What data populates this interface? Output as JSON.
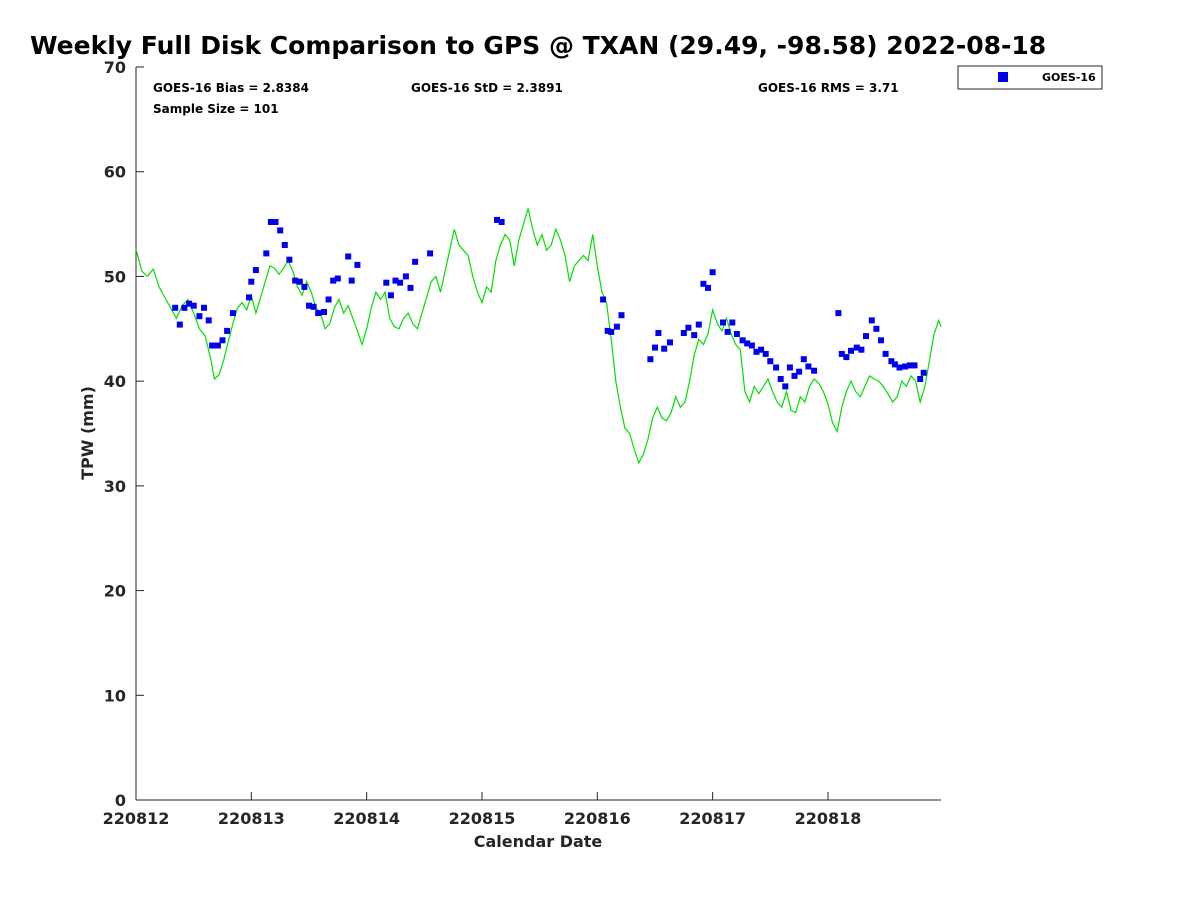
{
  "chart_data": {
    "type": "line+scatter",
    "title": "Weekly Full Disk Comparison to GPS @ TXAN (29.49, -98.58) 2022-08-18",
    "xlabel": "Calendar Date",
    "ylabel": "TPW (mm)",
    "xlim": [
      12.0,
      18.98
    ],
    "ylim": [
      0,
      70
    ],
    "grid": false,
    "x_ticks": [
      {
        "value": 12,
        "label": "220812"
      },
      {
        "value": 13,
        "label": "220813"
      },
      {
        "value": 14,
        "label": "220814"
      },
      {
        "value": 15,
        "label": "220815"
      },
      {
        "value": 16,
        "label": "220816"
      },
      {
        "value": 17,
        "label": "220817"
      },
      {
        "value": 18,
        "label": "220818"
      }
    ],
    "y_ticks": [
      {
        "value": 0,
        "label": "0"
      },
      {
        "value": 10,
        "label": "10"
      },
      {
        "value": 20,
        "label": "20"
      },
      {
        "value": 30,
        "label": "30"
      },
      {
        "value": 40,
        "label": "40"
      },
      {
        "value": 50,
        "label": "50"
      },
      {
        "value": 60,
        "label": "60"
      },
      {
        "value": 70,
        "label": "70"
      }
    ],
    "stats": {
      "bias": "GOES-16 Bias = 2.8384",
      "std": "GOES-16 StD = 2.3891",
      "rms": "GOES-16 RMS = 3.71",
      "sample": "Sample Size = 101"
    },
    "legend": {
      "position": "top-right",
      "entries": [
        "GOES-16"
      ]
    },
    "series": [
      {
        "name": "GPS",
        "kind": "line",
        "color": "#00e000",
        "points": [
          [
            12.0,
            52.6
          ],
          [
            12.05,
            50.5
          ],
          [
            12.1,
            50.0
          ],
          [
            12.15,
            50.7
          ],
          [
            12.2,
            49.0
          ],
          [
            12.25,
            48.0
          ],
          [
            12.3,
            47.0
          ],
          [
            12.35,
            46.0
          ],
          [
            12.4,
            47.2
          ],
          [
            12.45,
            47.8
          ],
          [
            12.5,
            46.5
          ],
          [
            12.55,
            45.0
          ],
          [
            12.6,
            44.3
          ],
          [
            12.65,
            42.0
          ],
          [
            12.68,
            40.2
          ],
          [
            12.72,
            40.6
          ],
          [
            12.76,
            42.0
          ],
          [
            12.8,
            43.8
          ],
          [
            12.84,
            45.5
          ],
          [
            12.88,
            47.0
          ],
          [
            12.92,
            47.5
          ],
          [
            12.96,
            46.8
          ],
          [
            13.0,
            48.2
          ],
          [
            13.04,
            46.5
          ],
          [
            13.08,
            48.0
          ],
          [
            13.12,
            49.5
          ],
          [
            13.16,
            51.0
          ],
          [
            13.2,
            50.8
          ],
          [
            13.24,
            50.2
          ],
          [
            13.28,
            50.8
          ],
          [
            13.32,
            51.5
          ],
          [
            13.36,
            50.5
          ],
          [
            13.4,
            49.0
          ],
          [
            13.44,
            48.2
          ],
          [
            13.48,
            49.5
          ],
          [
            13.52,
            48.5
          ],
          [
            13.56,
            47.0
          ],
          [
            13.6,
            46.5
          ],
          [
            13.64,
            45.0
          ],
          [
            13.68,
            45.5
          ],
          [
            13.72,
            47.0
          ],
          [
            13.76,
            47.8
          ],
          [
            13.8,
            46.5
          ],
          [
            13.84,
            47.2
          ],
          [
            13.88,
            46.0
          ],
          [
            13.92,
            44.8
          ],
          [
            13.96,
            43.5
          ],
          [
            14.0,
            45.0
          ],
          [
            14.04,
            47.0
          ],
          [
            14.08,
            48.5
          ],
          [
            14.12,
            47.8
          ],
          [
            14.16,
            48.5
          ],
          [
            14.2,
            46.0
          ],
          [
            14.24,
            45.2
          ],
          [
            14.28,
            45.0
          ],
          [
            14.32,
            46.0
          ],
          [
            14.36,
            46.5
          ],
          [
            14.4,
            45.5
          ],
          [
            14.44,
            45.0
          ],
          [
            14.48,
            46.5
          ],
          [
            14.52,
            48.0
          ],
          [
            14.56,
            49.5
          ],
          [
            14.6,
            50.0
          ],
          [
            14.64,
            48.5
          ],
          [
            14.68,
            50.5
          ],
          [
            14.72,
            52.5
          ],
          [
            14.76,
            54.5
          ],
          [
            14.8,
            53.0
          ],
          [
            14.84,
            52.5
          ],
          [
            14.88,
            52.0
          ],
          [
            14.92,
            50.0
          ],
          [
            14.96,
            48.5
          ],
          [
            15.0,
            47.5
          ],
          [
            15.04,
            49.0
          ],
          [
            15.08,
            48.5
          ],
          [
            15.12,
            51.5
          ],
          [
            15.16,
            53.0
          ],
          [
            15.2,
            54.0
          ],
          [
            15.24,
            53.5
          ],
          [
            15.28,
            51.0
          ],
          [
            15.32,
            53.5
          ],
          [
            15.36,
            55.0
          ],
          [
            15.4,
            56.5
          ],
          [
            15.44,
            54.5
          ],
          [
            15.48,
            53.0
          ],
          [
            15.52,
            54.0
          ],
          [
            15.56,
            52.5
          ],
          [
            15.6,
            53.0
          ],
          [
            15.64,
            54.5
          ],
          [
            15.68,
            53.5
          ],
          [
            15.72,
            52.0
          ],
          [
            15.76,
            49.5
          ],
          [
            15.8,
            51.0
          ],
          [
            15.84,
            51.5
          ],
          [
            15.88,
            52.0
          ],
          [
            15.92,
            51.5
          ],
          [
            15.96,
            54.0
          ],
          [
            16.0,
            51.0
          ],
          [
            16.04,
            48.5
          ],
          [
            16.08,
            47.5
          ],
          [
            16.12,
            44.0
          ],
          [
            16.16,
            40.0
          ],
          [
            16.2,
            37.5
          ],
          [
            16.24,
            35.5
          ],
          [
            16.28,
            35.0
          ],
          [
            16.32,
            33.5
          ],
          [
            16.36,
            32.2
          ],
          [
            16.4,
            33.0
          ],
          [
            16.44,
            34.5
          ],
          [
            16.48,
            36.5
          ],
          [
            16.52,
            37.5
          ],
          [
            16.56,
            36.5
          ],
          [
            16.6,
            36.2
          ],
          [
            16.64,
            37.0
          ],
          [
            16.68,
            38.5
          ],
          [
            16.72,
            37.5
          ],
          [
            16.76,
            38.0
          ],
          [
            16.8,
            40.0
          ],
          [
            16.84,
            42.5
          ],
          [
            16.88,
            44.0
          ],
          [
            16.92,
            43.5
          ],
          [
            16.96,
            44.5
          ],
          [
            17.0,
            46.8
          ],
          [
            17.04,
            45.5
          ],
          [
            17.08,
            44.8
          ],
          [
            17.12,
            46.0
          ],
          [
            17.16,
            44.5
          ],
          [
            17.2,
            43.5
          ],
          [
            17.24,
            43.0
          ],
          [
            17.28,
            39.0
          ],
          [
            17.32,
            38.0
          ],
          [
            17.36,
            39.5
          ],
          [
            17.4,
            38.8
          ],
          [
            17.44,
            39.5
          ],
          [
            17.48,
            40.2
          ],
          [
            17.52,
            39.0
          ],
          [
            17.56,
            38.0
          ],
          [
            17.6,
            37.5
          ],
          [
            17.64,
            39.0
          ],
          [
            17.68,
            37.2
          ],
          [
            17.72,
            37.0
          ],
          [
            17.76,
            38.5
          ],
          [
            17.8,
            38.0
          ],
          [
            17.84,
            39.5
          ],
          [
            17.88,
            40.2
          ],
          [
            17.92,
            39.8
          ],
          [
            17.96,
            39.0
          ],
          [
            18.0,
            37.8
          ],
          [
            18.04,
            36.0
          ],
          [
            18.08,
            35.2
          ],
          [
            18.12,
            37.5
          ],
          [
            18.16,
            39.0
          ],
          [
            18.2,
            40.0
          ],
          [
            18.24,
            39.0
          ],
          [
            18.28,
            38.5
          ],
          [
            18.32,
            39.5
          ],
          [
            18.36,
            40.5
          ],
          [
            18.4,
            40.2
          ],
          [
            18.44,
            40.0
          ],
          [
            18.48,
            39.5
          ],
          [
            18.52,
            38.8
          ],
          [
            18.56,
            38.0
          ],
          [
            18.6,
            38.5
          ],
          [
            18.64,
            40.0
          ],
          [
            18.68,
            39.5
          ],
          [
            18.72,
            40.5
          ],
          [
            18.76,
            40.0
          ],
          [
            18.8,
            38.0
          ],
          [
            18.84,
            39.5
          ],
          [
            18.88,
            42.0
          ],
          [
            18.92,
            44.5
          ],
          [
            18.96,
            45.8
          ],
          [
            18.98,
            45.2
          ]
        ]
      },
      {
        "name": "GOES-16",
        "kind": "scatter",
        "color": "#0000ee",
        "points": [
          [
            12.34,
            47.0
          ],
          [
            12.38,
            45.4
          ],
          [
            12.42,
            47.0
          ],
          [
            12.46,
            47.4
          ],
          [
            12.5,
            47.2
          ],
          [
            12.55,
            46.2
          ],
          [
            12.59,
            47.0
          ],
          [
            12.63,
            45.8
          ],
          [
            12.66,
            43.4
          ],
          [
            12.71,
            43.4
          ],
          [
            12.75,
            43.9
          ],
          [
            12.79,
            44.8
          ],
          [
            12.84,
            46.5
          ],
          [
            12.98,
            48.0
          ],
          [
            13.0,
            49.5
          ],
          [
            13.04,
            50.6
          ],
          [
            13.13,
            52.2
          ],
          [
            13.17,
            55.2
          ],
          [
            13.21,
            55.2
          ],
          [
            13.25,
            54.4
          ],
          [
            13.29,
            53.0
          ],
          [
            13.33,
            51.6
          ],
          [
            13.38,
            49.6
          ],
          [
            13.42,
            49.5
          ],
          [
            13.46,
            49.0
          ],
          [
            13.5,
            47.2
          ],
          [
            13.54,
            47.1
          ],
          [
            13.58,
            46.5
          ],
          [
            13.63,
            46.6
          ],
          [
            13.67,
            47.8
          ],
          [
            13.71,
            49.6
          ],
          [
            13.75,
            49.8
          ],
          [
            13.84,
            51.9
          ],
          [
            13.87,
            49.6
          ],
          [
            13.92,
            51.1
          ],
          [
            14.17,
            49.4
          ],
          [
            14.21,
            48.2
          ],
          [
            14.25,
            49.6
          ],
          [
            14.29,
            49.4
          ],
          [
            14.34,
            50.0
          ],
          [
            14.38,
            48.9
          ],
          [
            14.42,
            51.4
          ],
          [
            14.55,
            52.2
          ],
          [
            15.13,
            55.4
          ],
          [
            15.17,
            55.2
          ],
          [
            16.05,
            47.8
          ],
          [
            16.09,
            44.8
          ],
          [
            16.12,
            44.7
          ],
          [
            16.17,
            45.2
          ],
          [
            16.21,
            46.3
          ],
          [
            16.46,
            42.1
          ],
          [
            16.5,
            43.2
          ],
          [
            16.53,
            44.6
          ],
          [
            16.58,
            43.1
          ],
          [
            16.63,
            43.7
          ],
          [
            16.75,
            44.6
          ],
          [
            16.79,
            45.1
          ],
          [
            16.84,
            44.4
          ],
          [
            16.88,
            45.4
          ],
          [
            16.92,
            49.3
          ],
          [
            16.96,
            48.9
          ],
          [
            17.0,
            50.4
          ],
          [
            17.09,
            45.6
          ],
          [
            17.13,
            44.7
          ],
          [
            17.17,
            45.6
          ],
          [
            17.21,
            44.5
          ],
          [
            17.26,
            43.9
          ],
          [
            17.3,
            43.6
          ],
          [
            17.34,
            43.4
          ],
          [
            17.38,
            42.8
          ],
          [
            17.42,
            43.0
          ],
          [
            17.46,
            42.6
          ],
          [
            17.5,
            41.9
          ],
          [
            17.55,
            41.3
          ],
          [
            17.59,
            40.2
          ],
          [
            17.63,
            39.5
          ],
          [
            17.67,
            41.3
          ],
          [
            17.71,
            40.5
          ],
          [
            17.75,
            40.9
          ],
          [
            17.79,
            42.1
          ],
          [
            17.83,
            41.4
          ],
          [
            17.88,
            41.0
          ],
          [
            18.09,
            46.5
          ],
          [
            18.12,
            42.6
          ],
          [
            18.16,
            42.3
          ],
          [
            18.2,
            42.9
          ],
          [
            18.25,
            43.2
          ],
          [
            18.29,
            43.0
          ],
          [
            18.33,
            44.3
          ],
          [
            18.38,
            45.8
          ],
          [
            18.42,
            45.0
          ],
          [
            18.46,
            43.9
          ],
          [
            18.5,
            42.6
          ],
          [
            18.55,
            41.9
          ],
          [
            18.58,
            41.6
          ],
          [
            18.62,
            41.3
          ],
          [
            18.67,
            41.4
          ],
          [
            18.71,
            41.5
          ],
          [
            18.75,
            41.5
          ],
          [
            18.8,
            40.2
          ],
          [
            18.83,
            40.8
          ]
        ]
      }
    ]
  }
}
